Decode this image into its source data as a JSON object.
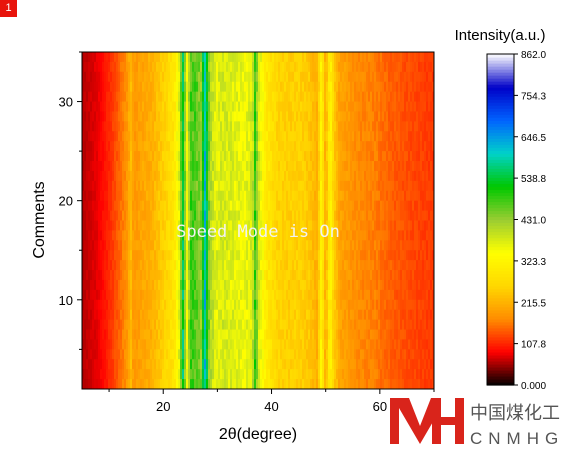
{
  "page_badge": "1",
  "chart_data": {
    "type": "heatmap",
    "title": "",
    "xlabel": "2θ(degree)",
    "ylabel": "Comments",
    "xlim": [
      5,
      70
    ],
    "ylim": [
      1,
      35
    ],
    "x_ticks": [
      20,
      40,
      60
    ],
    "x_minor_ticks": [
      10,
      30,
      50,
      70
    ],
    "y_ticks": [
      10,
      20,
      30
    ],
    "y_minor_ticks": [
      5,
      15,
      25,
      35
    ],
    "colorbar": {
      "label": "Intensity(a.u.)",
      "min": 0,
      "max": 862,
      "ticks": [
        "0.000",
        "107.8",
        "215.5",
        "323.3",
        "431.0",
        "538.8",
        "646.5",
        "754.3",
        "862.0"
      ],
      "colors": [
        "#000000",
        "#ff0000",
        "#ff8c00",
        "#ffd700",
        "#ffff00",
        "#9acd32",
        "#00c800",
        "#00d2c8",
        "#0064ff",
        "#0000c8",
        "#ffffff"
      ]
    },
    "overlay_text": "Speed Mode is On",
    "profile": {
      "x": [
        5,
        8,
        10,
        12,
        13.5,
        14,
        14.5,
        16,
        18,
        20,
        22,
        23,
        23.7,
        24.3,
        25,
        26,
        27,
        27.7,
        28.5,
        29.5,
        31,
        33,
        35,
        36.5,
        37,
        37.5,
        39,
        41,
        43,
        45,
        47,
        48.5,
        49.2,
        50,
        50.8,
        51.5,
        52.5,
        55,
        57,
        59,
        61,
        63,
        66,
        70
      ],
      "intensity": [
        60,
        80,
        110,
        150,
        190,
        230,
        185,
        200,
        215,
        250,
        290,
        380,
        560,
        330,
        480,
        470,
        440,
        620,
        430,
        370,
        380,
        370,
        360,
        380,
        500,
        390,
        300,
        260,
        250,
        255,
        240,
        210,
        330,
        200,
        330,
        250,
        200,
        180,
        170,
        165,
        150,
        140,
        130,
        120
      ]
    }
  },
  "watermark": {
    "logo_mark": "MH",
    "cn_text": "中国煤化工",
    "en_text": "CNMHG",
    "color": "#d9241b"
  }
}
